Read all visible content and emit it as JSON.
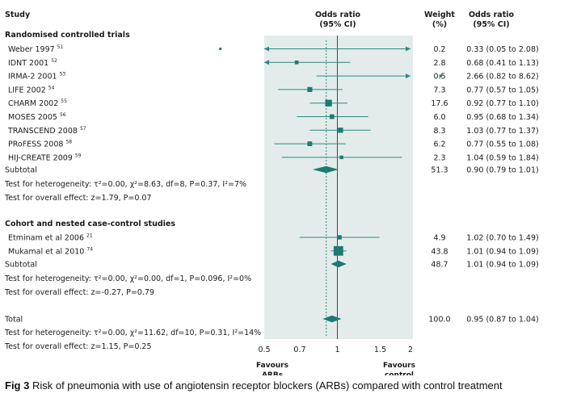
{
  "chart_data": {
    "type": "forest",
    "scale": "log",
    "headers": {
      "study": "Study",
      "odds_ratio": [
        "Odds ratio",
        "(95% CI)"
      ],
      "weight": [
        "Weight",
        "(%)"
      ],
      "odds_ratio_ci": [
        "Odds ratio",
        "(95% CI)"
      ]
    },
    "groups": [
      {
        "title": "Randomised controlled trials",
        "studies": [
          {
            "name": "Weber 1997",
            "ref": "51",
            "or": 0.33,
            "lo": 0.05,
            "hi": 2.08,
            "weight": "0.2",
            "ci_text": "0.33 (0.05 to 2.08)"
          },
          {
            "name": "IDNT 2001",
            "ref": "52",
            "or": 0.68,
            "lo": 0.41,
            "hi": 1.13,
            "weight": "2.8",
            "ci_text": "0.68 (0.41 to 1.13)"
          },
          {
            "name": "IRMA-2 2001",
            "ref": "53",
            "or": 2.66,
            "lo": 0.82,
            "hi": 8.62,
            "weight": "0.5",
            "ci_text": "2.66 (0.82 to 8.62)"
          },
          {
            "name": "LIFE 2002",
            "ref": "54",
            "or": 0.77,
            "lo": 0.57,
            "hi": 1.05,
            "weight": "7.3",
            "ci_text": "0.77 (0.57 to 1.05)"
          },
          {
            "name": "CHARM 2002",
            "ref": "55",
            "or": 0.92,
            "lo": 0.77,
            "hi": 1.1,
            "weight": "17.6",
            "ci_text": "0.92 (0.77 to 1.10)"
          },
          {
            "name": "MOSES 2005",
            "ref": "56",
            "or": 0.95,
            "lo": 0.68,
            "hi": 1.34,
            "weight": "6.0",
            "ci_text": "0.95 (0.68 to 1.34)"
          },
          {
            "name": "TRANSCEND 2008",
            "ref": "57",
            "or": 1.03,
            "lo": 0.77,
            "hi": 1.37,
            "weight": "8.3",
            "ci_text": "1.03 (0.77 to 1.37)"
          },
          {
            "name": "PRoFESS 2008",
            "ref": "58",
            "or": 0.77,
            "lo": 0.55,
            "hi": 1.08,
            "weight": "6.2",
            "ci_text": "0.77 (0.55 to 1.08)"
          },
          {
            "name": "HIJ-CREATE 2009",
            "ref": "59",
            "or": 1.04,
            "lo": 0.59,
            "hi": 1.84,
            "weight": "2.3",
            "ci_text": "1.04 (0.59 to 1.84)"
          }
        ],
        "subtotal": {
          "label": "Subtotal",
          "or": 0.9,
          "lo": 0.79,
          "hi": 1.01,
          "weight": "51.3",
          "ci_text": "0.90 (0.79 to 1.01)"
        },
        "heterogeneity": "Test for heterogeneity: τ²=0.00, χ²=8.63, df=8, P=0.37, I²=7%",
        "overall_effect": "Test for overall effect: z=1.79, P=0.07"
      },
      {
        "title": "Cohort and nested case-control studies",
        "studies": [
          {
            "name": "Etminam et al 2006",
            "ref": "21",
            "or": 1.02,
            "lo": 0.7,
            "hi": 1.49,
            "weight": "4.9",
            "ci_text": "1.02 (0.70 to 1.49)"
          },
          {
            "name": "Mukamal et al 2010",
            "ref": "74",
            "or": 1.01,
            "lo": 0.94,
            "hi": 1.09,
            "weight": "43.8",
            "ci_text": "1.01 (0.94 to 1.09)"
          }
        ],
        "subtotal": {
          "label": "Subtotal",
          "or": 1.01,
          "lo": 0.94,
          "hi": 1.09,
          "weight": "48.7",
          "ci_text": "1.01 (0.94 to 1.09)"
        },
        "heterogeneity": "Test for heterogeneity: τ²=0.00, χ²=0.00, df=1, P=0.096, I²=0%",
        "overall_effect": "Test for overall effect: z=-0.27, P=0.79"
      }
    ],
    "total": {
      "label": "Total",
      "or": 0.95,
      "lo": 0.87,
      "hi": 1.04,
      "weight": "100.0",
      "ci_text": "0.95 (0.87 to 1.04)",
      "heterogeneity": "Test for heterogeneity: τ²=0.00, χ²=11.62, df=10, P=0.31, I²=14%",
      "overall_effect": "Test for overall effect: z=1.15, P=0.25"
    },
    "xaxis": {
      "ticks": [
        0.5,
        0.7,
        1,
        1.5,
        2
      ],
      "tick_labels": [
        "0.5",
        "0.7",
        "1",
        "1.5",
        "2"
      ],
      "range": [
        0.5,
        2
      ]
    },
    "reference_line": 1,
    "pooled_line": 0.9,
    "favours_left": [
      "Favours",
      "ARBs"
    ],
    "favours_right": [
      "Favours",
      "control"
    ]
  },
  "caption": {
    "label": "Fig 3",
    "text": " Risk of pneumonia with use of angiotensin receptor blockers (ARBs) compared with control treatment"
  },
  "colors": {
    "panel": "#e3ecea",
    "marker": "#1e7a72",
    "line": "#2a8a80",
    "text": "#1a1a1a"
  }
}
